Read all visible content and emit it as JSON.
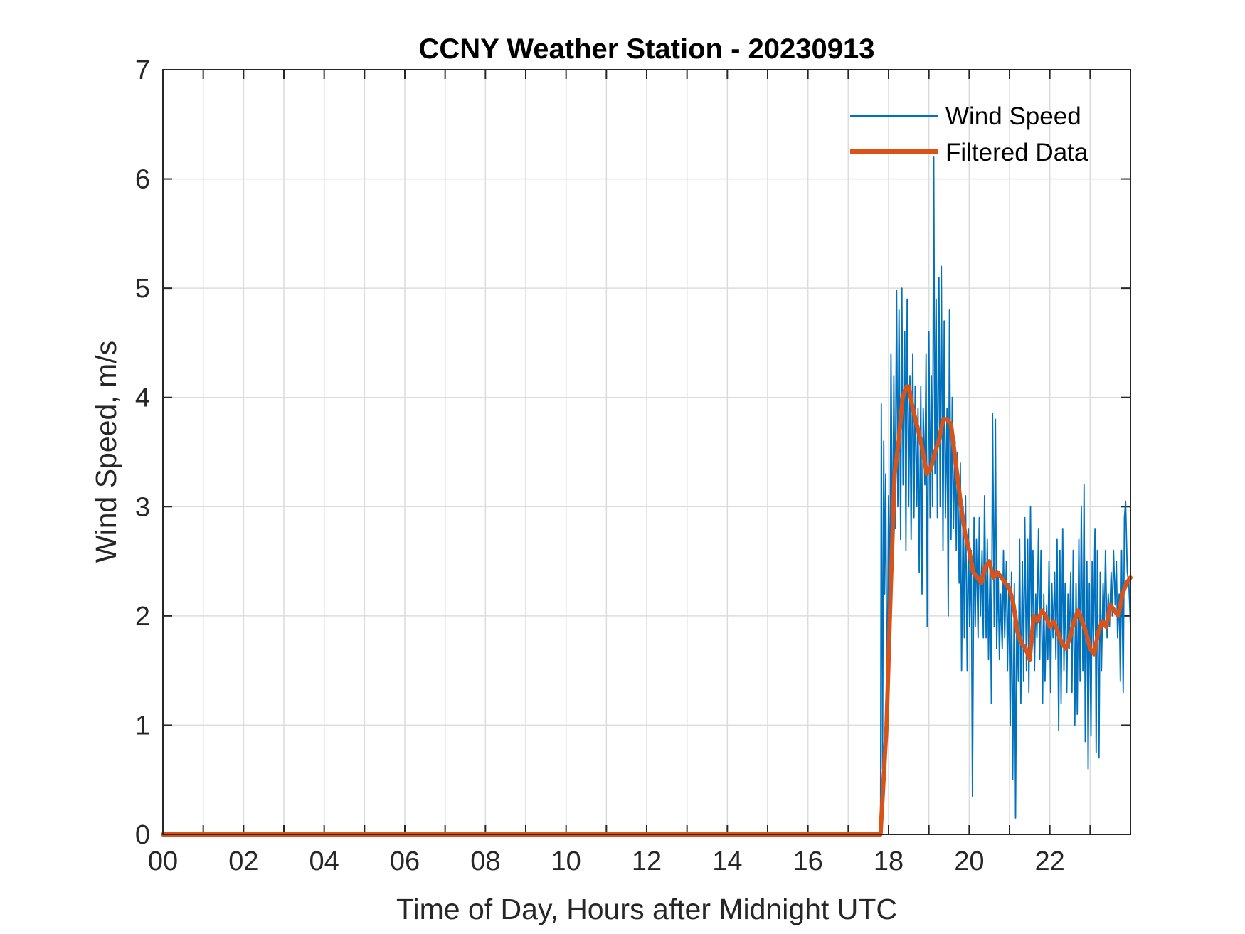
{
  "chart_data": {
    "type": "line",
    "title": "CCNY Weather Station - 20230913",
    "xlabel": "Time of Day, Hours after Midnight UTC",
    "ylabel": "Wind Speed, m/s",
    "xlim": [
      0,
      24
    ],
    "ylim": [
      0,
      7
    ],
    "grid": true,
    "x_ticks": [
      0,
      2,
      4,
      6,
      8,
      10,
      12,
      14,
      16,
      18,
      20,
      22
    ],
    "x_tick_labels": [
      "00",
      "02",
      "04",
      "06",
      "08",
      "10",
      "12",
      "14",
      "16",
      "18",
      "20",
      "22"
    ],
    "x_gridlines": [
      1,
      2,
      3,
      4,
      5,
      6,
      7,
      8,
      9,
      10,
      11,
      12,
      13,
      14,
      15,
      16,
      17,
      18,
      19,
      20,
      21,
      22,
      23
    ],
    "y_ticks": [
      0,
      1,
      2,
      3,
      4,
      5,
      6,
      7
    ],
    "y_tick_labels": [
      "0",
      "1",
      "2",
      "3",
      "4",
      "5",
      "6",
      "7"
    ],
    "legend_position": "top-right",
    "series": [
      {
        "name": "Wind Speed",
        "color": "#0072BD",
        "line_width": "thin",
        "data_start_hour": 17.8,
        "points": [
          [
            0,
            0
          ],
          [
            17.8,
            0
          ],
          [
            17.82,
            3.94
          ],
          [
            17.85,
            0.6
          ],
          [
            17.88,
            3.6
          ],
          [
            17.9,
            2.2
          ],
          [
            17.93,
            3.3
          ],
          [
            17.96,
            0.95
          ],
          [
            18.0,
            3.1
          ],
          [
            18.03,
            1.9
          ],
          [
            18.06,
            4.4
          ],
          [
            18.1,
            2.4
          ],
          [
            18.13,
            4.2
          ],
          [
            18.16,
            2.8
          ],
          [
            18.2,
            4.98
          ],
          [
            18.23,
            3.0
          ],
          [
            18.26,
            4.8
          ],
          [
            18.3,
            2.7
          ],
          [
            18.33,
            5.0
          ],
          [
            18.36,
            3.2
          ],
          [
            18.4,
            4.6
          ],
          [
            18.43,
            2.6
          ],
          [
            18.46,
            4.9
          ],
          [
            18.5,
            3.0
          ],
          [
            18.53,
            4.2
          ],
          [
            18.56,
            2.7
          ],
          [
            18.6,
            4.4
          ],
          [
            18.63,
            2.9
          ],
          [
            18.66,
            4.1
          ],
          [
            18.7,
            3.0
          ],
          [
            18.73,
            3.9
          ],
          [
            18.76,
            2.4
          ],
          [
            18.8,
            4.1
          ],
          [
            18.83,
            2.2
          ],
          [
            18.86,
            3.9
          ],
          [
            18.9,
            3.2
          ],
          [
            18.93,
            4.4
          ],
          [
            18.96,
            1.9
          ],
          [
            19.0,
            4.6
          ],
          [
            19.03,
            2.9
          ],
          [
            19.06,
            4.2
          ],
          [
            19.09,
            3.0
          ],
          [
            19.12,
            6.2
          ],
          [
            19.15,
            3.3
          ],
          [
            19.18,
            4.9
          ],
          [
            19.21,
            2.9
          ],
          [
            19.25,
            5.1
          ],
          [
            19.28,
            3.0
          ],
          [
            19.31,
            5.2
          ],
          [
            19.35,
            2.6
          ],
          [
            19.38,
            4.7
          ],
          [
            19.41,
            2.9
          ],
          [
            19.45,
            3.9
          ],
          [
            19.48,
            2.0
          ],
          [
            19.51,
            4.8
          ],
          [
            19.55,
            2.7
          ],
          [
            19.58,
            4.0
          ],
          [
            19.61,
            2.8
          ],
          [
            19.65,
            3.6
          ],
          [
            19.68,
            2.6
          ],
          [
            19.71,
            3.5
          ],
          [
            19.75,
            2.3
          ],
          [
            19.78,
            3.4
          ],
          [
            19.81,
            1.5
          ],
          [
            19.85,
            3.0
          ],
          [
            19.88,
            1.8
          ],
          [
            19.91,
            3.1
          ],
          [
            19.95,
            1.5
          ],
          [
            19.98,
            2.8
          ],
          [
            20.01,
            1.9
          ],
          [
            20.05,
            2.6
          ],
          [
            20.08,
            0.35
          ],
          [
            20.12,
            2.9
          ],
          [
            20.15,
            1.9
          ],
          [
            20.18,
            2.7
          ],
          [
            20.22,
            1.8
          ],
          [
            20.25,
            2.9
          ],
          [
            20.28,
            2.0
          ],
          [
            20.32,
            2.6
          ],
          [
            20.35,
            1.8
          ],
          [
            20.38,
            3.1
          ],
          [
            20.42,
            1.8
          ],
          [
            20.45,
            2.7
          ],
          [
            20.48,
            1.6
          ],
          [
            20.52,
            2.5
          ],
          [
            20.55,
            1.2
          ],
          [
            20.58,
            3.85
          ],
          [
            20.62,
            1.9
          ],
          [
            20.65,
            3.8
          ],
          [
            20.68,
            1.7
          ],
          [
            20.72,
            2.4
          ],
          [
            20.75,
            1.6
          ],
          [
            20.78,
            2.2
          ],
          [
            20.82,
            1.7
          ],
          [
            20.85,
            2.6
          ],
          [
            20.88,
            1.8
          ],
          [
            20.92,
            2.5
          ],
          [
            20.95,
            1.5
          ],
          [
            20.98,
            2.3
          ],
          [
            21.02,
            1.0
          ],
          [
            21.05,
            2.4
          ],
          [
            21.08,
            0.5
          ],
          [
            21.12,
            2.3
          ],
          [
            21.15,
            0.15
          ],
          [
            21.18,
            2.0
          ],
          [
            21.22,
            1.4
          ],
          [
            21.25,
            2.7
          ],
          [
            21.28,
            1.2
          ],
          [
            21.32,
            2.5
          ],
          [
            21.35,
            1.4
          ],
          [
            21.38,
            2.9
          ],
          [
            21.42,
            1.5
          ],
          [
            21.45,
            2.7
          ],
          [
            21.48,
            1.3
          ],
          [
            21.52,
            3.0
          ],
          [
            21.55,
            1.7
          ],
          [
            21.58,
            2.6
          ],
          [
            21.62,
            1.5
          ],
          [
            21.65,
            2.2
          ],
          [
            21.68,
            1.8
          ],
          [
            21.72,
            2.8
          ],
          [
            21.75,
            1.6
          ],
          [
            21.78,
            2.6
          ],
          [
            21.82,
            1.2
          ],
          [
            21.85,
            2.2
          ],
          [
            21.88,
            1.4
          ],
          [
            21.92,
            2.1
          ],
          [
            21.95,
            1.6
          ],
          [
            21.98,
            2.5
          ],
          [
            22.02,
            1.3
          ],
          [
            22.05,
            2.3
          ],
          [
            22.08,
            1.8
          ],
          [
            22.12,
            2.4
          ],
          [
            22.15,
            1.6
          ],
          [
            22.18,
            2.7
          ],
          [
            22.22,
            0.95
          ],
          [
            22.25,
            2.6
          ],
          [
            22.28,
            1.2
          ],
          [
            22.32,
            2.8
          ],
          [
            22.35,
            1.5
          ],
          [
            22.38,
            2.3
          ],
          [
            22.42,
            1.3
          ],
          [
            22.45,
            2.2
          ],
          [
            22.48,
            1.7
          ],
          [
            22.52,
            2.4
          ],
          [
            22.55,
            1.3
          ],
          [
            22.58,
            2.6
          ],
          [
            22.62,
            1.0
          ],
          [
            22.65,
            2.3
          ],
          [
            22.68,
            1.1
          ],
          [
            22.72,
            2.7
          ],
          [
            22.75,
            1.4
          ],
          [
            22.78,
            3.0
          ],
          [
            22.82,
            1.5
          ],
          [
            22.85,
            3.2
          ],
          [
            22.88,
            0.85
          ],
          [
            22.92,
            2.5
          ],
          [
            22.95,
            0.6
          ],
          [
            22.98,
            2.3
          ],
          [
            23.02,
            0.9
          ],
          [
            23.05,
            2.5
          ],
          [
            23.08,
            1.7
          ],
          [
            23.12,
            2.8
          ],
          [
            23.15,
            0.75
          ],
          [
            23.18,
            2.6
          ],
          [
            23.22,
            0.7
          ],
          [
            23.25,
            2.4
          ],
          [
            23.28,
            1.5
          ],
          [
            23.32,
            2.3
          ],
          [
            23.35,
            1.9
          ],
          [
            23.38,
            2.6
          ],
          [
            23.42,
            1.8
          ],
          [
            23.45,
            2.2
          ],
          [
            23.48,
            1.9
          ],
          [
            23.52,
            2.4
          ],
          [
            23.55,
            2.0
          ],
          [
            23.58,
            2.6
          ],
          [
            23.62,
            2.1
          ],
          [
            23.65,
            2.5
          ],
          [
            23.68,
            1.8
          ],
          [
            23.72,
            2.2
          ],
          [
            23.75,
            1.4
          ],
          [
            23.78,
            2.6
          ],
          [
            23.82,
            1.3
          ],
          [
            23.85,
            2.9
          ],
          [
            23.88,
            3.05
          ],
          [
            23.92,
            2.4
          ],
          [
            23.96,
            2.3
          ],
          [
            24.0,
            1.9
          ]
        ]
      },
      {
        "name": "Filtered Data",
        "color": "#D95319",
        "line_width": "thick",
        "points": [
          [
            0,
            0
          ],
          [
            17.8,
            0
          ],
          [
            17.95,
            1.0
          ],
          [
            18.05,
            2.2
          ],
          [
            18.15,
            3.3
          ],
          [
            18.25,
            3.6
          ],
          [
            18.35,
            4.0
          ],
          [
            18.45,
            4.1
          ],
          [
            18.5,
            4.1
          ],
          [
            18.6,
            3.9
          ],
          [
            18.7,
            3.75
          ],
          [
            18.8,
            3.6
          ],
          [
            18.9,
            3.4
          ],
          [
            18.95,
            3.3
          ],
          [
            19.05,
            3.35
          ],
          [
            19.15,
            3.5
          ],
          [
            19.25,
            3.6
          ],
          [
            19.35,
            3.8
          ],
          [
            19.45,
            3.8
          ],
          [
            19.55,
            3.75
          ],
          [
            19.6,
            3.6
          ],
          [
            19.7,
            3.3
          ],
          [
            19.8,
            3.0
          ],
          [
            19.9,
            2.75
          ],
          [
            20.0,
            2.6
          ],
          [
            20.1,
            2.4
          ],
          [
            20.2,
            2.35
          ],
          [
            20.3,
            2.3
          ],
          [
            20.4,
            2.45
          ],
          [
            20.5,
            2.5
          ],
          [
            20.6,
            2.35
          ],
          [
            20.7,
            2.4
          ],
          [
            20.8,
            2.35
          ],
          [
            20.9,
            2.3
          ],
          [
            21.0,
            2.25
          ],
          [
            21.1,
            2.1
          ],
          [
            21.2,
            1.85
          ],
          [
            21.3,
            1.75
          ],
          [
            21.4,
            1.7
          ],
          [
            21.5,
            1.6
          ],
          [
            21.6,
            2.0
          ],
          [
            21.7,
            1.95
          ],
          [
            21.8,
            2.05
          ],
          [
            21.9,
            2.0
          ],
          [
            22.0,
            1.9
          ],
          [
            22.1,
            1.95
          ],
          [
            22.2,
            1.85
          ],
          [
            22.3,
            1.75
          ],
          [
            22.4,
            1.7
          ],
          [
            22.5,
            1.8
          ],
          [
            22.6,
            1.95
          ],
          [
            22.7,
            2.05
          ],
          [
            22.8,
            1.95
          ],
          [
            22.9,
            1.85
          ],
          [
            23.0,
            1.7
          ],
          [
            23.1,
            1.65
          ],
          [
            23.2,
            1.85
          ],
          [
            23.3,
            1.95
          ],
          [
            23.4,
            1.9
          ],
          [
            23.5,
            2.1
          ],
          [
            23.6,
            2.05
          ],
          [
            23.7,
            2.0
          ],
          [
            23.8,
            2.2
          ],
          [
            23.9,
            2.3
          ],
          [
            24.0,
            2.35
          ]
        ]
      }
    ]
  }
}
